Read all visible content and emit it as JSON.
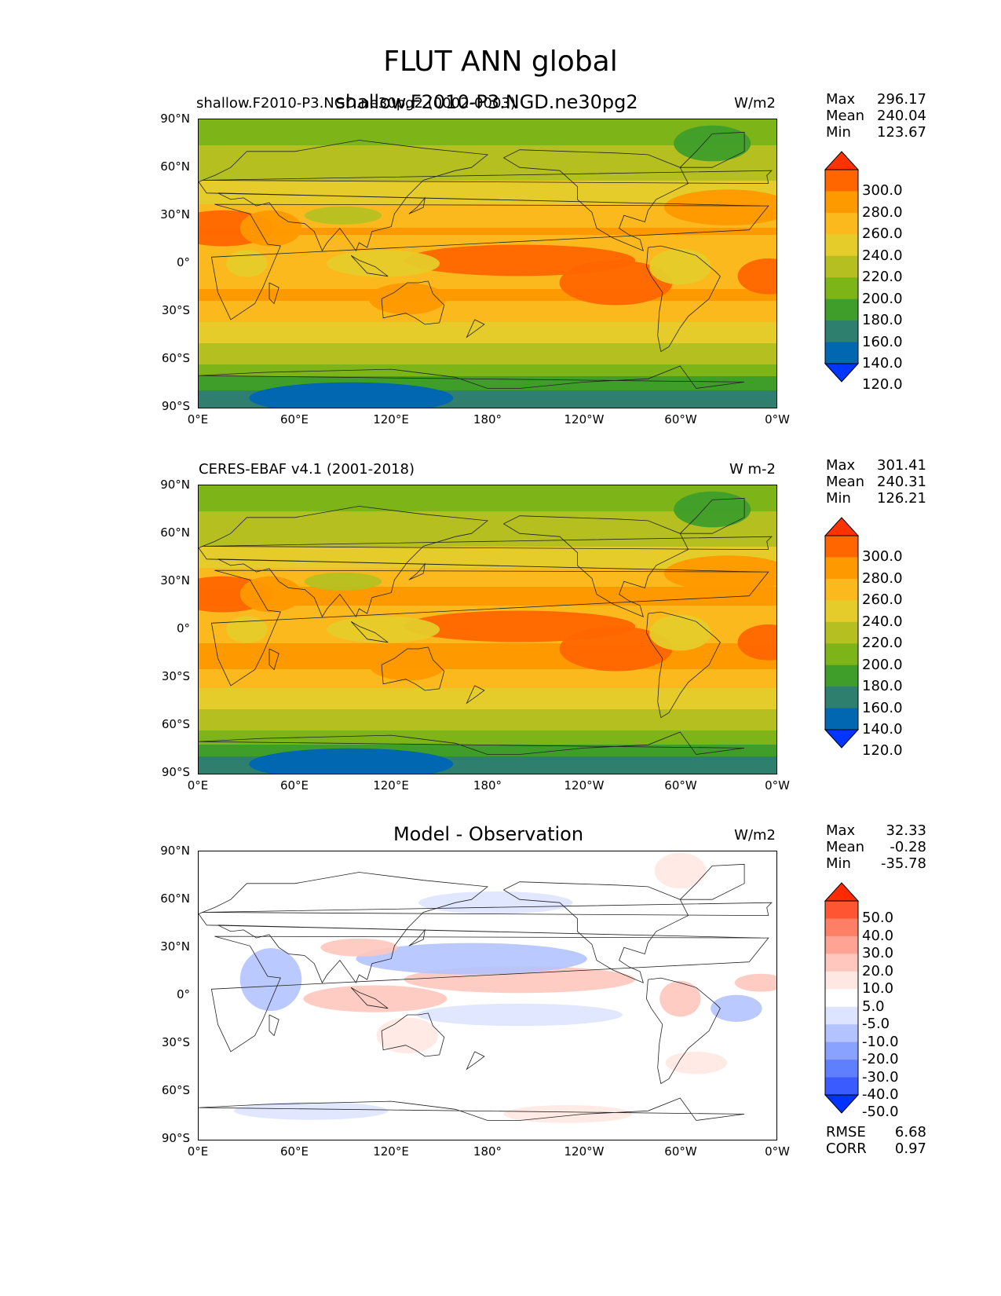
{
  "suptitle": "FLUT ANN global",
  "axis_labels": {
    "lat": [
      "90°N",
      "60°N",
      "30°N",
      "0°",
      "30°S",
      "60°S",
      "90°S"
    ],
    "lon": [
      "0°E",
      "60°E",
      "120°E",
      "180°",
      "120°W",
      "60°W",
      "0°W"
    ]
  },
  "panels": [
    {
      "left_title": "shallow.F2010-P3.NGD.ne30pg2 (0002-0003)",
      "center_title": "shallow.F2010-P3.NGD.ne30pg2",
      "units": "W/m2",
      "stats": {
        "max_label": "Max",
        "max": "296.17",
        "mean_label": "Mean",
        "mean": "240.04",
        "min_label": "Min",
        "min": "123.67"
      }
    },
    {
      "left_title": "CERES-EBAF v4.1 (2001-2018)",
      "center_title": "",
      "units": "W m-2",
      "stats": {
        "max_label": "Max",
        "max": "301.41",
        "mean_label": "Mean",
        "mean": "240.31",
        "min_label": "Min",
        "min": "126.21"
      }
    },
    {
      "left_title": "",
      "center_title": "Model - Observation",
      "units": "W/m2",
      "stats": {
        "max_label": "Max",
        "max": "32.33",
        "mean_label": "Mean",
        "mean": "-0.28",
        "min_label": "Min",
        "min": "-35.78"
      },
      "metrics": {
        "rmse_label": "RMSE",
        "rmse": "6.68",
        "corr_label": "CORR",
        "corr": "0.97"
      }
    }
  ],
  "colorbars": {
    "field": {
      "labels": [
        "300.0",
        "280.0",
        "260.0",
        "240.0",
        "220.0",
        "200.0",
        "180.0",
        "160.0",
        "140.0",
        "120.0"
      ],
      "colors": [
        "#ff3300",
        "#ff6600",
        "#ff9900",
        "#fbb91d",
        "#e6cc2a",
        "#b5c020",
        "#7db518",
        "#3f9e2a",
        "#2f7f6f",
        "#0067b0",
        "#0036ff"
      ]
    },
    "diff": {
      "labels": [
        "50.0",
        "40.0",
        "30.0",
        "20.0",
        "10.0",
        "5.0",
        "-5.0",
        "-10.0",
        "-20.0",
        "-30.0",
        "-40.0",
        "-50.0"
      ],
      "colors": [
        "#ff2a00",
        "#ff5533",
        "#ff7f66",
        "#ffa394",
        "#ffc7bd",
        "#ffe8e3",
        "#ffffff",
        "#dde4ff",
        "#b3c3ff",
        "#8aa2ff",
        "#5f7fff",
        "#3a5cff",
        "#0033ff"
      ]
    }
  },
  "chart_data": [
    {
      "type": "heatmap",
      "title": "shallow.F2010-P3.NGD.ne30pg2 (0002-0003)",
      "variable": "FLUT",
      "units": "W/m2",
      "x": [
        "0°E",
        "60°E",
        "120°E",
        "180°",
        "120°W",
        "60°W",
        "0°W"
      ],
      "y": [
        "90°N",
        "60°N",
        "30°N",
        "0°",
        "30°S",
        "60°S",
        "90°S"
      ],
      "zonal_band_values": [
        {
          "lat": 90,
          "value": 185
        },
        {
          "lat": 75,
          "value": 200
        },
        {
          "lat": 60,
          "value": 215
        },
        {
          "lat": 45,
          "value": 225
        },
        {
          "lat": 30,
          "value": 255
        },
        {
          "lat": 20,
          "value": 262
        },
        {
          "lat": 10,
          "value": 250
        },
        {
          "lat": 0,
          "value": 245
        },
        {
          "lat": -10,
          "value": 255
        },
        {
          "lat": -20,
          "value": 265
        },
        {
          "lat": -30,
          "value": 248
        },
        {
          "lat": -45,
          "value": 225
        },
        {
          "lat": -60,
          "value": 205
        },
        {
          "lat": -70,
          "value": 180
        },
        {
          "lat": -80,
          "value": 155
        },
        {
          "lat": -90,
          "value": 150
        }
      ],
      "max": 296.17,
      "mean": 240.04,
      "min": 123.67,
      "colorbar_levels": [
        120,
        140,
        160,
        180,
        200,
        220,
        240,
        260,
        280,
        300
      ]
    },
    {
      "type": "heatmap",
      "title": "CERES-EBAF v4.1 (2001-2018)",
      "variable": "FLUT",
      "units": "W m-2",
      "x": [
        "0°E",
        "60°E",
        "120°E",
        "180°",
        "120°W",
        "60°W",
        "0°W"
      ],
      "y": [
        "90°N",
        "60°N",
        "30°N",
        "0°",
        "30°S",
        "60°S",
        "90°S"
      ],
      "zonal_band_values": [
        {
          "lat": 90,
          "value": 185
        },
        {
          "lat": 75,
          "value": 200
        },
        {
          "lat": 60,
          "value": 212
        },
        {
          "lat": 45,
          "value": 228
        },
        {
          "lat": 30,
          "value": 258
        },
        {
          "lat": 20,
          "value": 265
        },
        {
          "lat": 10,
          "value": 252
        },
        {
          "lat": 0,
          "value": 250
        },
        {
          "lat": -10,
          "value": 262
        },
        {
          "lat": -20,
          "value": 268
        },
        {
          "lat": -30,
          "value": 250
        },
        {
          "lat": -45,
          "value": 225
        },
        {
          "lat": -60,
          "value": 205
        },
        {
          "lat": -70,
          "value": 182
        },
        {
          "lat": -80,
          "value": 155
        },
        {
          "lat": -90,
          "value": 152
        }
      ],
      "max": 301.41,
      "mean": 240.31,
      "min": 126.21,
      "colorbar_levels": [
        120,
        140,
        160,
        180,
        200,
        220,
        240,
        260,
        280,
        300
      ]
    },
    {
      "type": "heatmap",
      "title": "Model - Observation",
      "variable": "FLUT",
      "units": "W/m2",
      "x": [
        "0°E",
        "60°E",
        "120°E",
        "180°",
        "120°W",
        "60°W",
        "0°W"
      ],
      "y": [
        "90°N",
        "60°N",
        "30°N",
        "0°",
        "30°S",
        "60°S",
        "90°S"
      ],
      "max": 32.33,
      "mean": -0.28,
      "min": -35.78,
      "rmse": 6.68,
      "corr": 0.97,
      "colorbar_levels": [
        -50,
        -40,
        -30,
        -20,
        -10,
        -5,
        5,
        10,
        20,
        30,
        40,
        50
      ]
    }
  ]
}
